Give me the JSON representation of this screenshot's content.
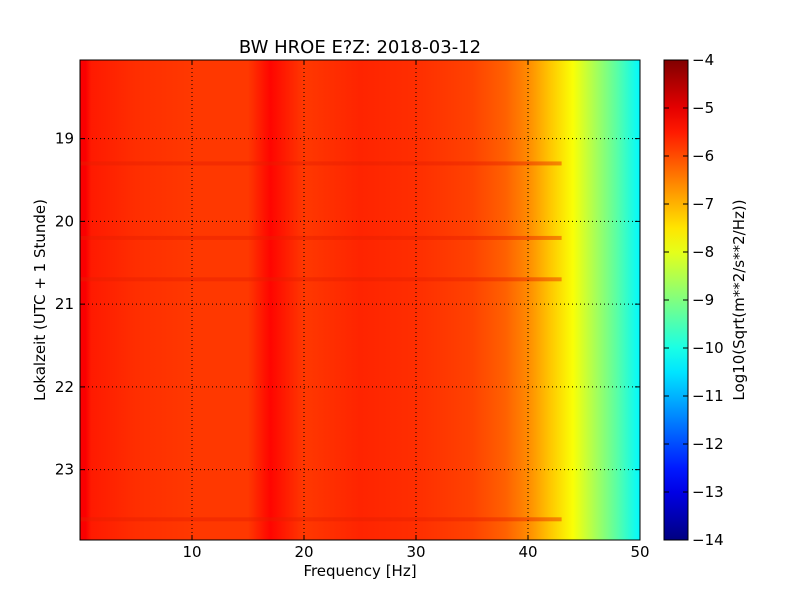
{
  "chart_data": {
    "type": "heatmap",
    "title": "BW HROE E?Z: 2018-03-12",
    "xlabel": "Frequency [Hz]",
    "ylabel": "Lokalzeit (UTC + 1 Stunde)",
    "xlim": [
      0,
      50
    ],
    "ylim": [
      18.05,
      23.85
    ],
    "x_ticks": [
      10,
      20,
      30,
      40,
      50
    ],
    "y_ticks": [
      19,
      20,
      21,
      22,
      23
    ],
    "y_axis_inverted": true,
    "grid": true,
    "colorbar": {
      "label": "Log10(Sqrt(m**2/s**2/Hz))",
      "range": [
        -14,
        -4
      ],
      "ticks": [
        -4,
        -5,
        -6,
        -7,
        -8,
        -9,
        -10,
        -11,
        -12,
        -13,
        -14
      ],
      "colormap": "jet"
    },
    "spectral_profile": [
      {
        "frequency": 0.5,
        "value": -5.2
      },
      {
        "frequency": 1,
        "value": -5.5
      },
      {
        "frequency": 5,
        "value": -5.7
      },
      {
        "frequency": 10,
        "value": -5.8
      },
      {
        "frequency": 15,
        "value": -5.8
      },
      {
        "frequency": 17,
        "value": -5.3
      },
      {
        "frequency": 20,
        "value": -5.8
      },
      {
        "frequency": 25,
        "value": -5.6
      },
      {
        "frequency": 30,
        "value": -5.7
      },
      {
        "frequency": 35,
        "value": -5.9
      },
      {
        "frequency": 38,
        "value": -6.2
      },
      {
        "frequency": 40,
        "value": -6.6
      },
      {
        "frequency": 42,
        "value": -7.2
      },
      {
        "frequency": 44,
        "value": -7.8
      },
      {
        "frequency": 46,
        "value": -8.6
      },
      {
        "frequency": 48,
        "value": -9.4
      },
      {
        "frequency": 50,
        "value": -10.3
      }
    ],
    "time_features": [
      {
        "time": 19.3,
        "description": "horizontal high-energy band"
      },
      {
        "time": 20.2,
        "description": "horizontal high-energy band"
      },
      {
        "time": 20.7,
        "description": "horizontal high-energy band"
      },
      {
        "time": 23.6,
        "description": "horizontal high-energy band"
      }
    ]
  },
  "colors": {
    "background": "#ffffff",
    "axis": "#000000",
    "grid": "#000000"
  }
}
